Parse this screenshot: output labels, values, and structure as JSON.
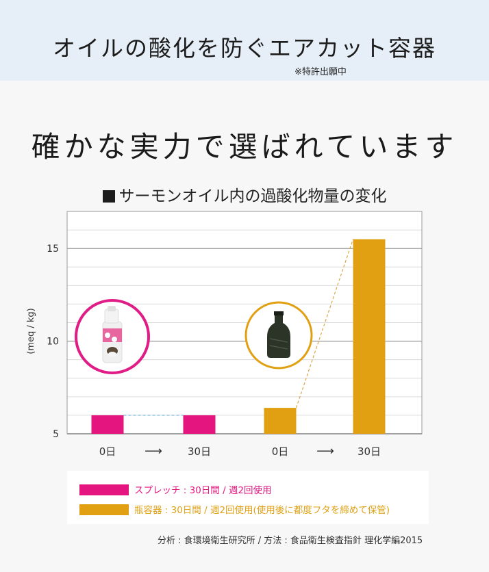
{
  "banner": {
    "title": "オイルの酸化を防ぐエアカット容器",
    "note": "※特許出願中"
  },
  "headline": "確かな実力で選ばれています",
  "chart_title": "サーモンオイル内の過酸化物量の変化",
  "chart_data": {
    "type": "bar",
    "title": "サーモンオイル内の過酸化物量の変化",
    "ylabel": "(meq / kg)",
    "ylim": [
      5,
      17
    ],
    "yticks": [
      5,
      10,
      15
    ],
    "grid": true,
    "categories": [
      "0日",
      "30日",
      "0日",
      "30日"
    ],
    "arrow": "⟶",
    "series": [
      {
        "name": "スプレッチ : 30日間 / 週2回使用",
        "color": "#e5157f",
        "points": [
          {
            "category_index": 0,
            "value": 6.0
          },
          {
            "category_index": 1,
            "value": 6.0
          }
        ]
      },
      {
        "name": "瓶容器 : 30日間 / 週2回使用(使用後に都度フタを締めて保管)",
        "color": "#e0a012",
        "points": [
          {
            "category_index": 2,
            "value": 6.4
          },
          {
            "category_index": 3,
            "value": 15.5
          }
        ]
      }
    ],
    "product_icons": [
      "spray-bottle-icon",
      "glass-bottle-icon"
    ]
  },
  "legend": [
    {
      "label": "スプレッチ : 30日間 / 週2回使用",
      "color": "#e5157f"
    },
    {
      "label": "瓶容器 : 30日間 / 週2回使用(使用後に都度フタを締めて保管)",
      "color": "#e0a012"
    }
  ],
  "source": "分析 : 食環境衛生研究所 / 方法 : 食品衛生検査指針 理化学編2015"
}
